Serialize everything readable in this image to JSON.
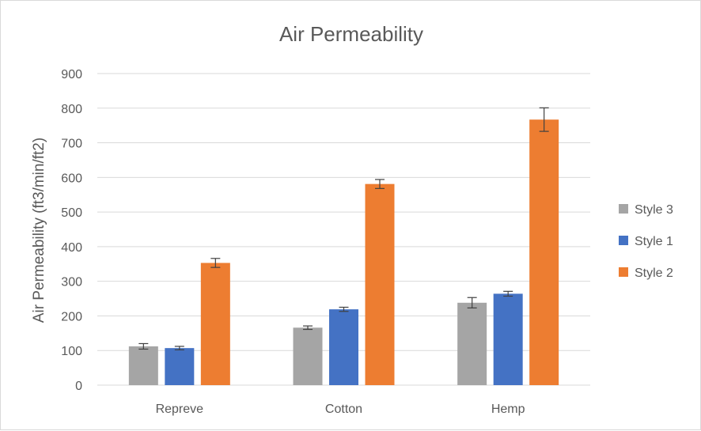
{
  "chart_data": {
    "type": "bar",
    "title": "Air Permeability",
    "xlabel": "",
    "ylabel": "Air Permeability (ft3/min/ft2)",
    "ylim": [
      0,
      900
    ],
    "yticks": [
      0,
      100,
      200,
      300,
      400,
      500,
      600,
      700,
      800,
      900
    ],
    "categories": [
      "Repreve",
      "Cotton",
      "Hemp"
    ],
    "grid": true,
    "legend_position": "right",
    "series": [
      {
        "name": "Style 3",
        "color": "#a5a5a5",
        "values": [
          112,
          166,
          238
        ],
        "errors": [
          8,
          5,
          15
        ]
      },
      {
        "name": "Style 1",
        "color": "#4472c4",
        "values": [
          107,
          219,
          264
        ],
        "errors": [
          5,
          6,
          7
        ]
      },
      {
        "name": "Style 2",
        "color": "#ed7d31",
        "values": [
          353,
          581,
          767
        ],
        "errors": [
          13,
          13,
          34
        ]
      }
    ]
  }
}
